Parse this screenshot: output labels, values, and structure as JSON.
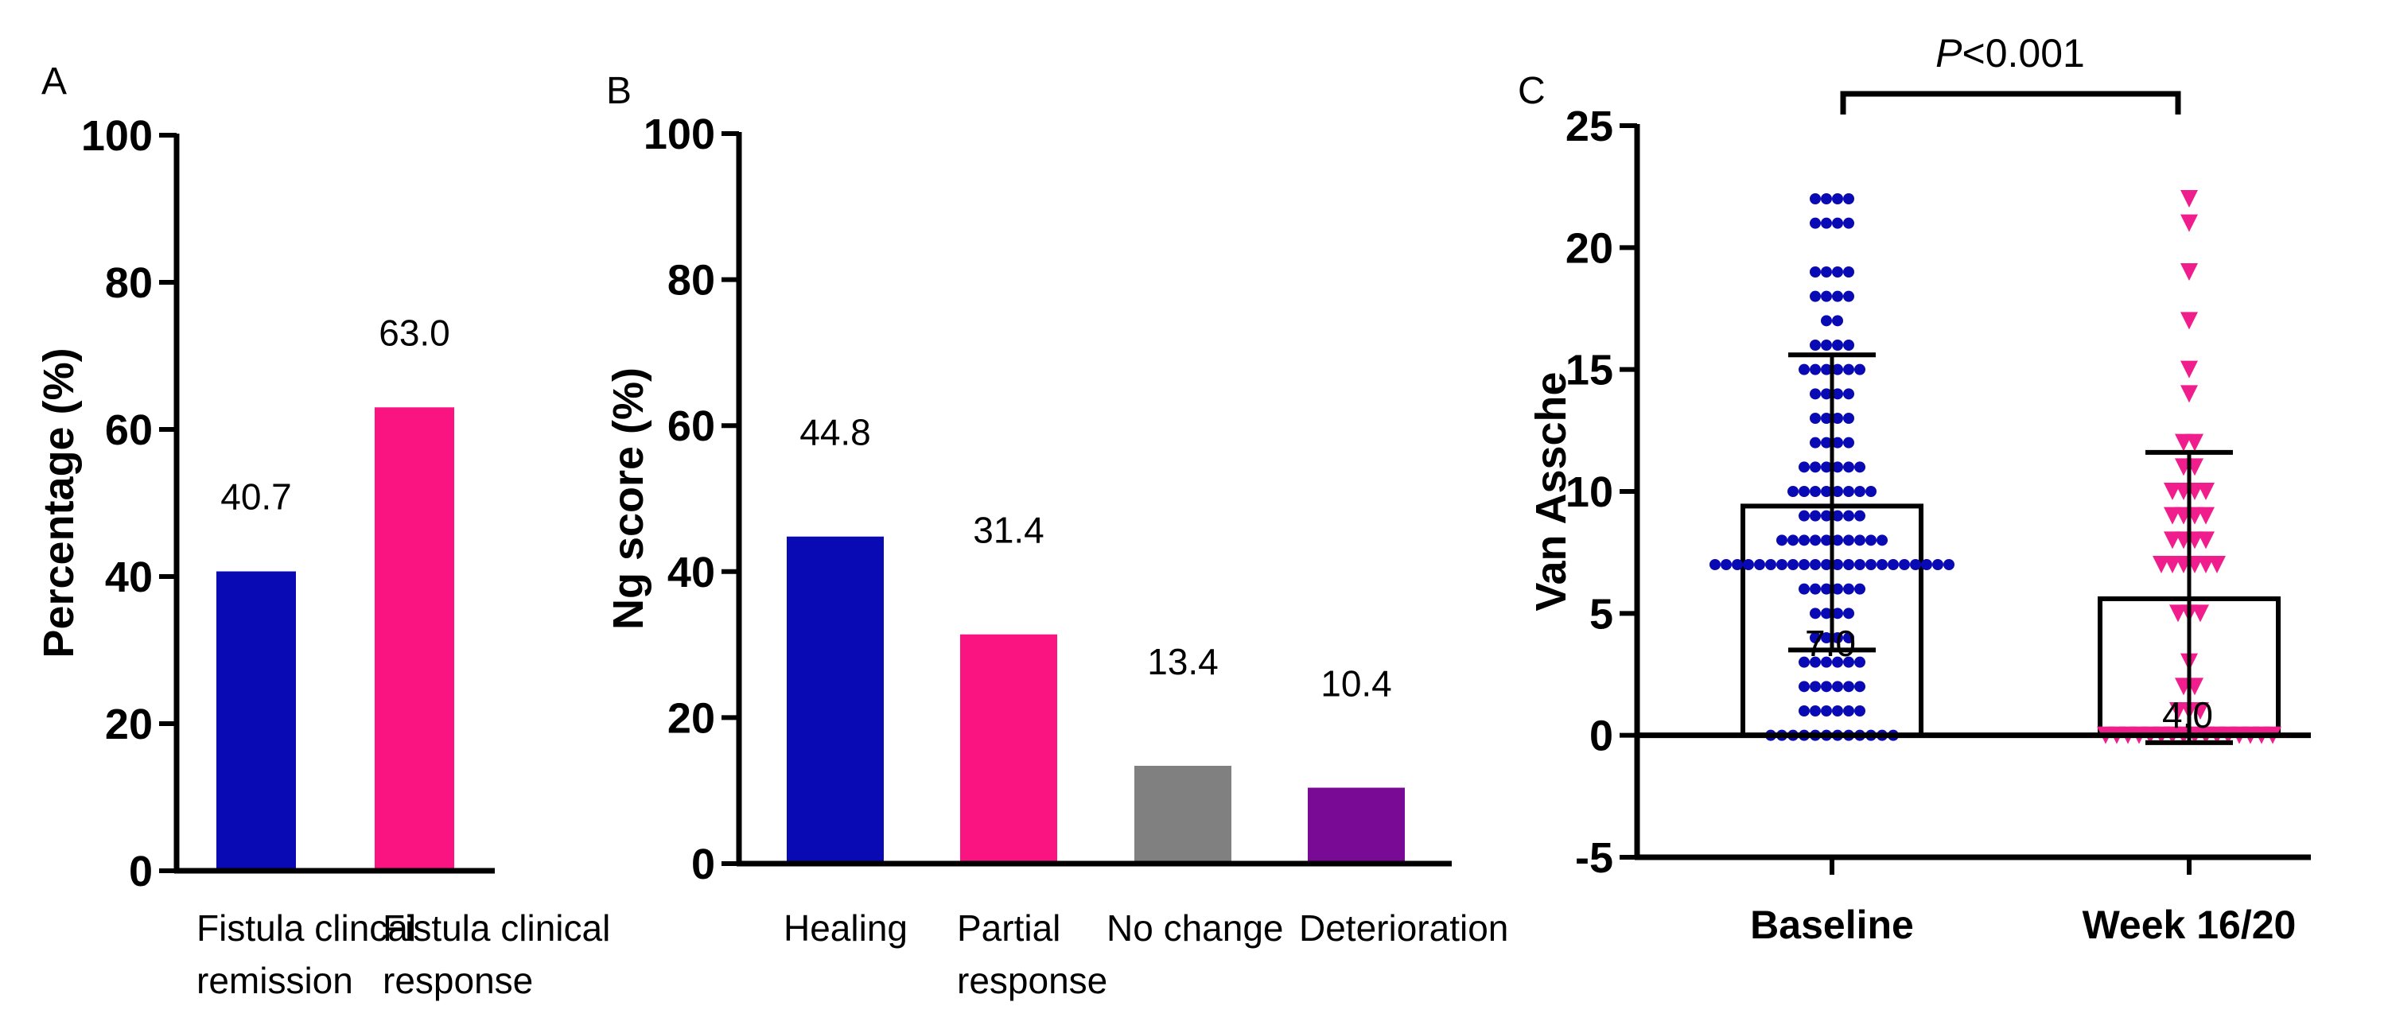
{
  "chart_data": [
    {
      "panel": "A",
      "type": "bar",
      "title": "",
      "ylabel": "Percentage (%)",
      "xlabel": "",
      "ylim": [
        0,
        100
      ],
      "yticks": [
        0,
        20,
        40,
        60,
        80,
        100
      ],
      "grid": false,
      "categories": [
        [
          "Fistula clincal",
          "remission"
        ],
        [
          "Fistula clinical",
          "response"
        ]
      ],
      "values": [
        40.7,
        63.0
      ],
      "value_labels": [
        "40.7",
        "63.0"
      ],
      "colors": [
        "#0a0ab4",
        "#fa1482"
      ]
    },
    {
      "panel": "B",
      "type": "bar",
      "title": "",
      "ylabel": "Ng score (%)",
      "xlabel": "",
      "ylim": [
        0,
        100
      ],
      "yticks": [
        0,
        20,
        40,
        60,
        80,
        100
      ],
      "grid": false,
      "categories": [
        [
          "Healing"
        ],
        [
          "Partial",
          "response"
        ],
        [
          "No change"
        ],
        [
          "Deterioration"
        ]
      ],
      "values": [
        44.8,
        31.4,
        13.4,
        10.4
      ],
      "value_labels": [
        "44.8",
        "31.4",
        "13.4",
        "10.4"
      ],
      "colors": [
        "#0a0ab4",
        "#fa1482",
        "#808080",
        "#780a96"
      ]
    },
    {
      "panel": "C",
      "type": "scatter",
      "title": "",
      "ylabel": "Van Assche",
      "xlabel": "",
      "ylim": [
        -5,
        25
      ],
      "yticks": [
        -5,
        0,
        5,
        10,
        15,
        20,
        25
      ],
      "grid": false,
      "categories": [
        "Baseline",
        "Week 16/20"
      ],
      "annotation": "P<0.001",
      "annotation_italic": "P",
      "annotation_rest": "<0.001",
      "series": [
        {
          "name": "Baseline",
          "marker": "circle",
          "color": "#0a0ab4",
          "mean": 9.4,
          "sd_low": 3.5,
          "sd_high": 15.6,
          "median_label": "7.0",
          "points": [
            {
              "y": 22,
              "n": 4
            },
            {
              "y": 21,
              "n": 4
            },
            {
              "y": 19,
              "n": 4
            },
            {
              "y": 18,
              "n": 4
            },
            {
              "y": 17,
              "n": 2
            },
            {
              "y": 16,
              "n": 4
            },
            {
              "y": 15,
              "n": 6
            },
            {
              "y": 14,
              "n": 4
            },
            {
              "y": 13,
              "n": 4
            },
            {
              "y": 12,
              "n": 4
            },
            {
              "y": 11,
              "n": 6
            },
            {
              "y": 10,
              "n": 8
            },
            {
              "y": 9,
              "n": 6
            },
            {
              "y": 8,
              "n": 10
            },
            {
              "y": 7,
              "n": 22
            },
            {
              "y": 6,
              "n": 6
            },
            {
              "y": 5,
              "n": 4
            },
            {
              "y": 4,
              "n": 4
            },
            {
              "y": 3,
              "n": 6
            },
            {
              "y": 2,
              "n": 6
            },
            {
              "y": 1,
              "n": 6
            },
            {
              "y": 0,
              "n": 12
            }
          ]
        },
        {
          "name": "Week 16/20",
          "marker": "triangle-down",
          "color": "#f01e8c",
          "mean": 5.6,
          "sd_low": -0.3,
          "sd_high": 11.6,
          "median_label": "4.0",
          "points": [
            {
              "y": 22,
              "n": 1
            },
            {
              "y": 21,
              "n": 1
            },
            {
              "y": 19,
              "n": 1
            },
            {
              "y": 17,
              "n": 1
            },
            {
              "y": 15,
              "n": 1
            },
            {
              "y": 14,
              "n": 1
            },
            {
              "y": 12,
              "n": 2
            },
            {
              "y": 11,
              "n": 2
            },
            {
              "y": 10,
              "n": 4
            },
            {
              "y": 9,
              "n": 4
            },
            {
              "y": 8,
              "n": 4
            },
            {
              "y": 7,
              "n": 6
            },
            {
              "y": 5,
              "n": 3
            },
            {
              "y": 3,
              "n": 1
            },
            {
              "y": 2,
              "n": 2
            },
            {
              "y": 1,
              "n": 3
            },
            {
              "y": 0,
              "n": 16
            }
          ]
        }
      ]
    }
  ]
}
